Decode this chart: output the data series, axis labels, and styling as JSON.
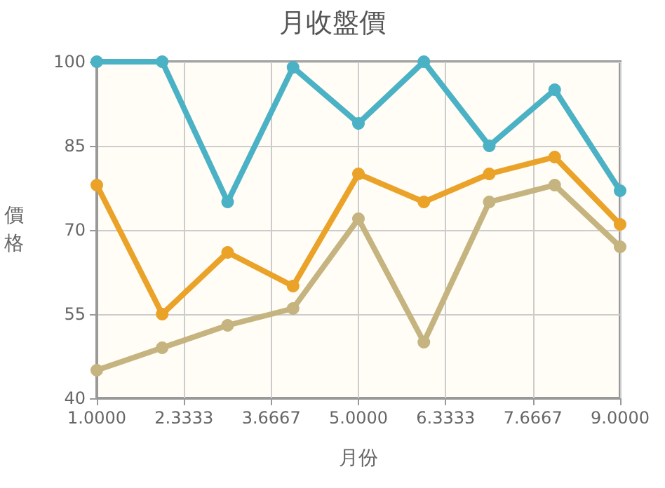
{
  "chart_data": {
    "type": "line",
    "title": "月收盤價",
    "xlabel": "月份",
    "ylabel": "價格",
    "x": [
      1,
      2,
      3,
      4,
      5,
      6,
      7,
      8,
      9
    ],
    "series": [
      {
        "color": "#4bb2c5",
        "values": [
          100,
          100,
          75,
          99,
          89,
          100,
          85,
          95,
          77
        ]
      },
      {
        "color": "#eaa228",
        "values": [
          78,
          55,
          66,
          60,
          80,
          75,
          80,
          83,
          71
        ]
      },
      {
        "color": "#c5b47f",
        "values": [
          45,
          49,
          53,
          56,
          72,
          50,
          75,
          78,
          67
        ]
      }
    ],
    "xlim": [
      1,
      9
    ],
    "xticks": [
      {
        "value": 1,
        "label": "1.0000"
      },
      {
        "value": 2.3333,
        "label": "2.3333"
      },
      {
        "value": 3.6667,
        "label": "3.6667"
      },
      {
        "value": 5,
        "label": "5.0000"
      },
      {
        "value": 6.3333,
        "label": "6.3333"
      },
      {
        "value": 7.6667,
        "label": "7.6667"
      },
      {
        "value": 9,
        "label": "9.0000"
      }
    ],
    "ylim": [
      40,
      100
    ],
    "yticks": [
      40,
      55,
      70,
      85,
      100
    ],
    "grid": true,
    "marker": "circle",
    "line_style": "solid"
  }
}
